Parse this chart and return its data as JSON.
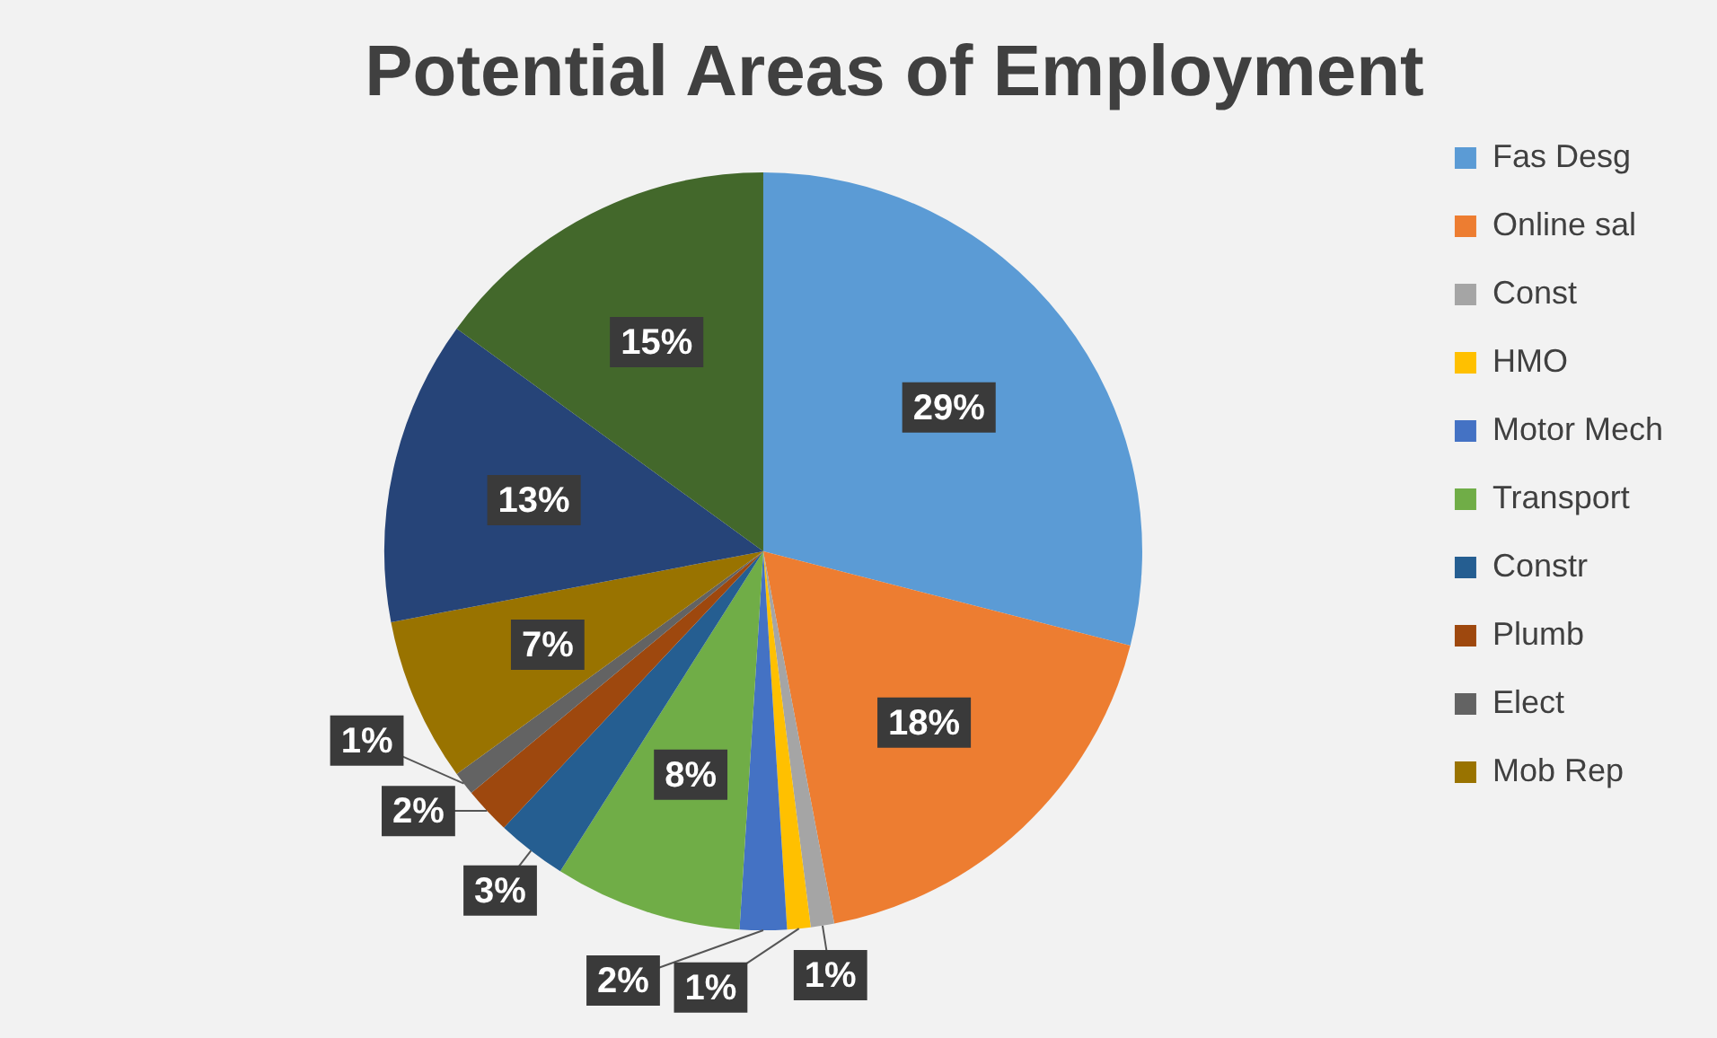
{
  "chart_data": {
    "type": "pie",
    "title": "Potential Areas of Employment",
    "categories": [
      "Fas Desg",
      "Online sal",
      "Const",
      "HMO",
      "Motor Mech",
      "Transport",
      "Constr",
      "Plumb",
      "Elect",
      "Mob Rep",
      null,
      null
    ],
    "values": [
      29,
      18,
      1,
      1,
      2,
      8,
      3,
      2,
      1,
      7,
      13,
      15
    ],
    "colors": [
      "#5b9bd5",
      "#ed7d31",
      "#a5a5a5",
      "#ffc000",
      "#4472c4",
      "#70ad47",
      "#255e91",
      "#9e480e",
      "#636363",
      "#997300",
      "#264478",
      "#43682b"
    ],
    "value_labels": [
      "29%",
      "18%",
      "1%",
      "1%",
      "2%",
      "8%",
      "3%",
      "2%",
      "1%",
      "7%",
      "13%",
      "15%"
    ],
    "legend": "right"
  }
}
